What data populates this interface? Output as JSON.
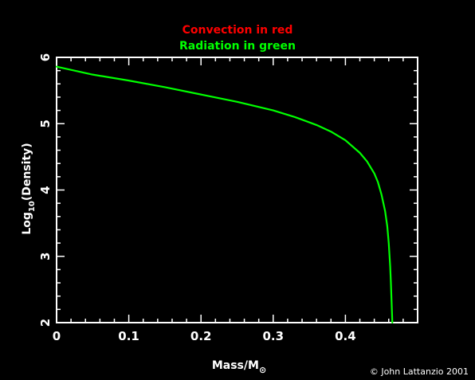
{
  "chart_data": {
    "type": "line",
    "title_lines": [
      {
        "text": "Convection in red",
        "color": "#ff0000"
      },
      {
        "text": "Radiation in green",
        "color": "#00ff00"
      }
    ],
    "xlabel": {
      "main": "Mass/M",
      "sub": "⊙"
    },
    "ylabel": {
      "main": "Log",
      "sub": "10",
      "rest": "(Density)"
    },
    "xlim": [
      0,
      0.5
    ],
    "ylim": [
      2,
      6
    ],
    "xticks": [
      "0",
      "0.1",
      "0.2",
      "0.3",
      "0.4"
    ],
    "yticks": [
      "2",
      "3",
      "4",
      "5",
      "6"
    ],
    "grid": false,
    "background": "#000000",
    "axis_color": "#ffffff",
    "series": [
      {
        "color": "#00ff00",
        "x": [
          0.0,
          0.05,
          0.1,
          0.15,
          0.2,
          0.25,
          0.3,
          0.33,
          0.36,
          0.38,
          0.4,
          0.42,
          0.43,
          0.44,
          0.445,
          0.45,
          0.455,
          0.458,
          0.46,
          0.462,
          0.463,
          0.464,
          0.465
        ],
        "y": [
          5.86,
          5.74,
          5.65,
          5.55,
          5.44,
          5.33,
          5.2,
          5.1,
          4.98,
          4.88,
          4.75,
          4.56,
          4.43,
          4.25,
          4.12,
          3.93,
          3.68,
          3.45,
          3.2,
          2.85,
          2.6,
          2.3,
          2.0
        ]
      }
    ]
  },
  "credit": "© John Lattanzio 2001"
}
